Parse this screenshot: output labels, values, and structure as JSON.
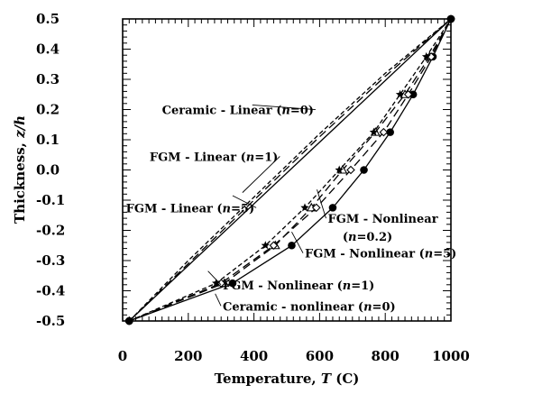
{
  "chart_data": {
    "type": "line",
    "xlabel_main": "Temperature, ",
    "xlabel_var": "T",
    "xlabel_unit": " (C)",
    "ylabel_main": "Thickness, ",
    "ylabel_var": "z/h",
    "xlim": [
      0,
      1000
    ],
    "ylim": [
      -0.5,
      0.5
    ],
    "x_ticks": [
      0,
      200,
      400,
      600,
      800,
      1000
    ],
    "x_tick_labels": [
      "0",
      "200",
      "400",
      "600",
      "800",
      "1000"
    ],
    "y_ticks": [
      0.5,
      0.4,
      0.3,
      0.2,
      0.1,
      0.0,
      -0.1,
      -0.2,
      -0.3,
      -0.4,
      -0.5
    ],
    "y_tick_labels": [
      "0.5",
      "0.4",
      "0.3",
      "0.2",
      "0.1",
      "0.0",
      "-0.1",
      "-0.2",
      "-0.3",
      "-0.4",
      "-0.5"
    ],
    "grid": false,
    "series": [
      {
        "style": "solid",
        "marker": "none",
        "points": [
          [
            20,
            -0.5
          ],
          [
            1000,
            0.5
          ]
        ]
      },
      {
        "style": "short-dash",
        "marker": "none",
        "points": [
          [
            20,
            -0.5
          ],
          [
            200,
            -0.3
          ],
          [
            400,
            -0.09
          ],
          [
            600,
            0.12
          ],
          [
            800,
            0.32
          ],
          [
            1000,
            0.5
          ]
        ]
      },
      {
        "style": "dash",
        "marker": "none",
        "points": [
          [
            20,
            -0.5
          ],
          [
            200,
            -0.31
          ],
          [
            400,
            -0.1
          ],
          [
            600,
            0.11
          ],
          [
            800,
            0.31
          ],
          [
            1000,
            0.5
          ]
        ]
      },
      {
        "style": "solid",
        "marker": "filled-circle",
        "points": [
          [
            20,
            -0.5
          ],
          [
            335,
            -0.375
          ],
          [
            515,
            -0.25
          ],
          [
            640,
            -0.125
          ],
          [
            735,
            0.0
          ],
          [
            815,
            0.125
          ],
          [
            885,
            0.25
          ],
          [
            945,
            0.375
          ],
          [
            1000,
            0.5
          ]
        ]
      },
      {
        "style": "dash",
        "marker": "open-triangle",
        "points": [
          [
            20,
            -0.5
          ],
          [
            310,
            -0.375
          ],
          [
            465,
            -0.25
          ],
          [
            575,
            -0.125
          ],
          [
            670,
            0.0
          ],
          [
            770,
            0.125
          ],
          [
            860,
            0.25
          ],
          [
            935,
            0.375
          ],
          [
            1000,
            0.5
          ]
        ]
      },
      {
        "style": "dash",
        "marker": "open-diamond",
        "points": [
          [
            20,
            -0.5
          ],
          [
            300,
            -0.375
          ],
          [
            460,
            -0.25
          ],
          [
            590,
            -0.125
          ],
          [
            695,
            0.0
          ],
          [
            795,
            0.125
          ],
          [
            870,
            0.25
          ],
          [
            940,
            0.375
          ],
          [
            1000,
            0.5
          ]
        ]
      },
      {
        "style": "short-dash",
        "marker": "filled-star",
        "points": [
          [
            20,
            -0.5
          ],
          [
            285,
            -0.375
          ],
          [
            435,
            -0.25
          ],
          [
            555,
            -0.125
          ],
          [
            660,
            0.0
          ],
          [
            765,
            0.125
          ],
          [
            845,
            0.25
          ],
          [
            925,
            0.375
          ],
          [
            1000,
            0.5
          ]
        ]
      }
    ],
    "annotations": [
      {
        "pre": "Ceramic - Linear (",
        "var": "n",
        "post": "=0)",
        "x": 120,
        "y": 0.185,
        "target": [
          395,
          0.215
        ]
      },
      {
        "pre": "FGM - Linear (",
        "var": "n",
        "post": "=1)",
        "x": 82,
        "y": 0.03,
        "target": [
          365,
          -0.075
        ]
      },
      {
        "pre": "FGM - Linear (",
        "var": "n",
        "post": "=5)",
        "x": 10,
        "y": -0.14,
        "target": [
          335,
          -0.085
        ]
      },
      {
        "pre": "FGM - Nonlinear",
        "var": "",
        "post": "",
        "x": 625,
        "y": -0.175,
        "target": [
          592,
          -0.065
        ]
      },
      {
        "pre": "(",
        "var": "n",
        "post": "=0.2)",
        "x": 670,
        "y": -0.235,
        "target": null
      },
      {
        "pre": "FGM - Nonlinear (",
        "var": "n",
        "post": "=5)",
        "x": 555,
        "y": -0.29,
        "target": [
          515,
          -0.205
        ]
      },
      {
        "pre": "FGM - Nonlinear (",
        "var": "n",
        "post": "=1)",
        "x": 305,
        "y": -0.395,
        "target": [
          260,
          -0.335
        ]
      },
      {
        "pre": "Ceramic - nonlinear (",
        "var": "n",
        "post": "=0)",
        "x": 305,
        "y": -0.465,
        "target": [
          282,
          -0.41
        ]
      }
    ]
  }
}
